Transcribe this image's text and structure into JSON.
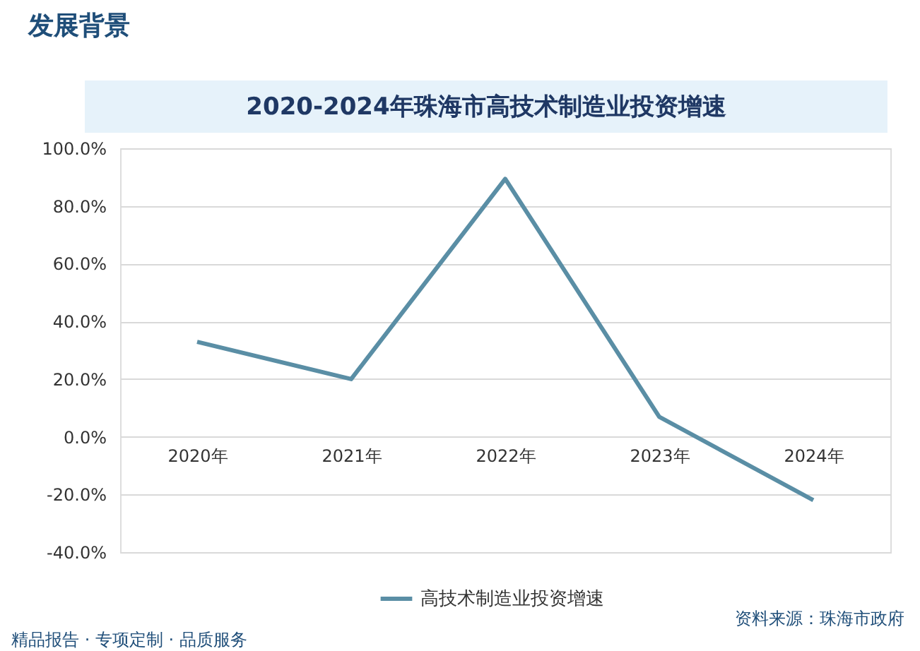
{
  "chart_data": {
    "type": "line",
    "title": "2020-2024年珠海市高技术制造业投资增速",
    "categories": [
      "2020年",
      "2021年",
      "2022年",
      "2023年",
      "2024年"
    ],
    "series": [
      {
        "name": "高技术制造业投资增速",
        "color": "#5a8ea5",
        "values": [
          32.9,
          20.0,
          89.4,
          6.9,
          -22.0
        ]
      }
    ],
    "ylim": [
      -40,
      100
    ],
    "yticks": [
      {
        "value": -40,
        "label": "-40.0%"
      },
      {
        "value": -20,
        "label": "-20.0%"
      },
      {
        "value": 0,
        "label": "0.0%"
      },
      {
        "value": 20,
        "label": "20.0%"
      },
      {
        "value": 40,
        "label": "40.0%"
      },
      {
        "value": 60,
        "label": "60.0%"
      },
      {
        "value": 80,
        "label": "80.0%"
      },
      {
        "value": 100,
        "label": "100.0%"
      }
    ],
    "grid": "y",
    "legend": "bottom",
    "marker": "none",
    "line_style": "solid",
    "annotations": [
      "发展背景",
      "精品报告 · 专项定制 · 品质服务",
      "资料来源：珠海市政府"
    ]
  }
}
